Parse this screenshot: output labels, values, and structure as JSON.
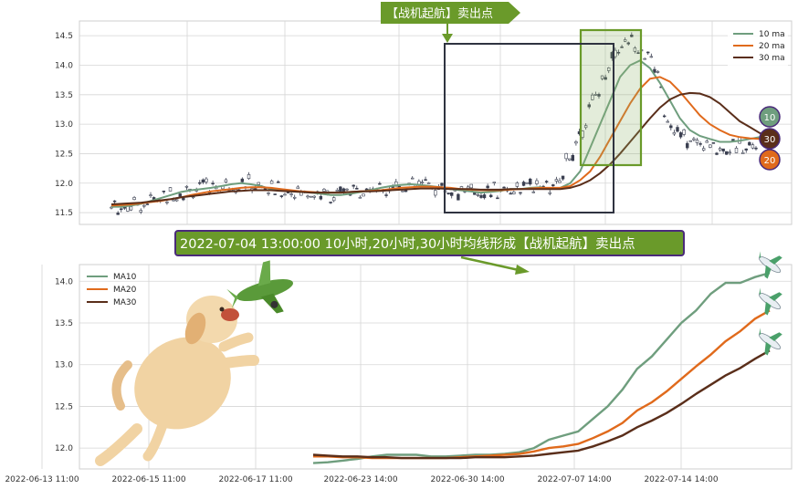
{
  "chart_data": [
    {
      "type": "line",
      "subtype": "candlestick-with-moving-averages",
      "title": "",
      "ylim": [
        11.3,
        14.75
      ],
      "yticks": [
        11.5,
        12.0,
        12.5,
        13.0,
        13.5,
        14.0,
        14.5
      ],
      "grid": true,
      "legend_position": "top-right",
      "series": [
        {
          "name": "10 ma",
          "color": "#6f9e7e",
          "values": [
            11.6,
            11.6,
            11.62,
            11.65,
            11.7,
            11.75,
            11.8,
            11.85,
            11.88,
            11.9,
            11.92,
            11.95,
            11.98,
            12.0,
            11.98,
            11.95,
            11.9,
            11.88,
            11.86,
            11.85,
            11.84,
            11.82,
            11.8,
            11.8,
            11.82,
            11.85,
            11.88,
            11.92,
            11.95,
            11.97,
            11.98,
            11.97,
            11.95,
            11.93,
            11.9,
            11.88,
            11.86,
            11.84,
            11.85,
            11.87,
            11.9,
            11.9,
            11.92,
            11.93,
            11.9,
            11.92,
            12.0,
            12.2,
            12.6,
            13.0,
            13.4,
            13.8,
            14.0,
            14.08,
            13.95,
            13.7,
            13.4,
            13.1,
            12.9,
            12.8,
            12.75,
            12.7,
            12.7,
            12.72,
            12.75,
            12.78,
            12.8
          ]
        },
        {
          "name": "20 ma",
          "color": "#e06a1c",
          "values": [
            11.62,
            11.63,
            11.64,
            11.66,
            11.68,
            11.7,
            11.73,
            11.76,
            11.8,
            11.83,
            11.86,
            11.88,
            11.9,
            11.92,
            11.93,
            11.93,
            11.92,
            11.9,
            11.88,
            11.86,
            11.85,
            11.84,
            11.84,
            11.84,
            11.85,
            11.86,
            11.87,
            11.88,
            11.9,
            11.92,
            11.93,
            11.94,
            11.94,
            11.93,
            11.92,
            11.9,
            11.89,
            11.88,
            11.88,
            11.88,
            11.89,
            11.9,
            11.91,
            11.92,
            11.92,
            11.92,
            11.95,
            12.05,
            12.2,
            12.45,
            12.75,
            13.05,
            13.35,
            13.6,
            13.77,
            13.8,
            13.72,
            13.55,
            13.35,
            13.15,
            13.0,
            12.9,
            12.82,
            12.78,
            12.76,
            12.75,
            12.75
          ]
        },
        {
          "name": "30 ma",
          "color": "#5a2e1a",
          "values": [
            11.64,
            11.65,
            11.66,
            11.67,
            11.69,
            11.71,
            11.73,
            11.76,
            11.78,
            11.8,
            11.82,
            11.84,
            11.86,
            11.87,
            11.88,
            11.88,
            11.88,
            11.87,
            11.86,
            11.85,
            11.84,
            11.84,
            11.84,
            11.84,
            11.85,
            11.86,
            11.86,
            11.87,
            11.88,
            11.89,
            11.9,
            11.91,
            11.91,
            11.91,
            11.9,
            11.9,
            11.9,
            11.89,
            11.89,
            11.89,
            11.9,
            11.9,
            11.9,
            11.9,
            11.9,
            11.9,
            11.92,
            11.97,
            12.05,
            12.17,
            12.32,
            12.5,
            12.7,
            12.9,
            13.1,
            13.28,
            13.42,
            13.5,
            13.53,
            13.52,
            13.46,
            13.35,
            13.2,
            13.05,
            12.95,
            12.85,
            12.8
          ]
        }
      ],
      "badges": [
        "10",
        "30",
        "20"
      ]
    },
    {
      "type": "line",
      "title": "",
      "ylim": [
        11.75,
        14.2
      ],
      "yticks": [
        12.0,
        12.5,
        13.0,
        13.5,
        14.0
      ],
      "xticks": [
        "2022-06-13 11:00",
        "2022-06-15 11:00",
        "2022-06-17 11:00",
        "2022-06-23 14:00",
        "2022-06-30 14:00",
        "2022-07-07 14:00",
        "2022-07-14 14:00"
      ],
      "grid": true,
      "legend_position": "top-left",
      "series": [
        {
          "name": "MA10",
          "color": "#6f9e7e",
          "values": [
            11.82,
            11.83,
            11.85,
            11.87,
            11.9,
            11.92,
            11.92,
            11.92,
            11.9,
            11.9,
            11.91,
            11.92,
            11.92,
            11.93,
            11.95,
            12.0,
            12.1,
            12.15,
            12.2,
            12.35,
            12.5,
            12.7,
            12.95,
            13.1,
            13.3,
            13.5,
            13.65,
            13.85,
            13.98,
            13.98,
            14.05,
            14.1
          ]
        },
        {
          "name": "MA20",
          "color": "#e06a1c",
          "values": [
            11.9,
            11.9,
            11.89,
            11.89,
            11.88,
            11.88,
            11.88,
            11.88,
            11.88,
            11.88,
            11.89,
            11.9,
            11.91,
            11.92,
            11.93,
            11.96,
            12.0,
            12.02,
            12.05,
            12.12,
            12.2,
            12.3,
            12.45,
            12.55,
            12.68,
            12.83,
            12.98,
            13.12,
            13.28,
            13.4,
            13.55,
            13.65
          ]
        },
        {
          "name": "MA30",
          "color": "#5a2e1a",
          "values": [
            11.92,
            11.91,
            11.9,
            11.9,
            11.89,
            11.89,
            11.88,
            11.88,
            11.88,
            11.88,
            11.88,
            11.89,
            11.89,
            11.89,
            11.9,
            11.91,
            11.93,
            11.95,
            11.97,
            12.02,
            12.08,
            12.15,
            12.25,
            12.33,
            12.42,
            12.53,
            12.65,
            12.76,
            12.87,
            12.96,
            13.07,
            13.17
          ]
        }
      ]
    }
  ],
  "annotations": {
    "signal_arrow": "【战机起航】卖出点",
    "signal_banner": "2022-07-04 13:00:00 10小时,20小时,30小时均线形成【战机起航】卖出点"
  },
  "colors": {
    "green_arrow": "#6a9a2a",
    "banner_bg": "#6a9a2a",
    "banner_border": "#4a2a7a",
    "box": "#2f3340"
  },
  "icons": [
    "dog-illustration",
    "airplane-icon"
  ]
}
